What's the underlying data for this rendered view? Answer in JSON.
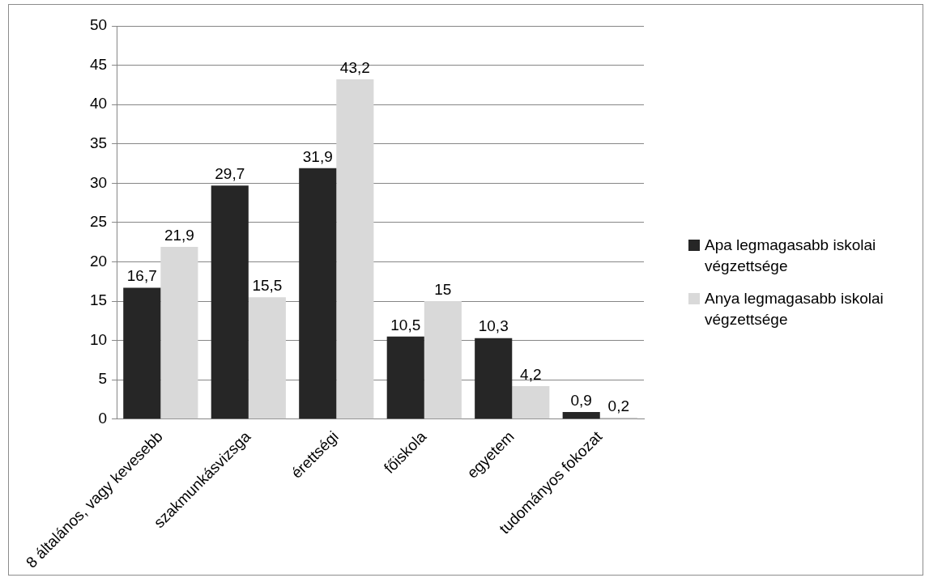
{
  "chart_data": {
    "type": "bar",
    "categories": [
      "8 általános, vagy kevesebb",
      "szakmunkásvizsga",
      "érettségi",
      "főiskola",
      "egyetem",
      "tudományos fokozat"
    ],
    "series": [
      {
        "name": "Apa legmagasabb iskolai végzettsége",
        "color": "#262626",
        "values": [
          16.7,
          29.7,
          31.9,
          10.5,
          10.3,
          0.9
        ],
        "value_labels": [
          "16,7",
          "29,7",
          "31,9",
          "10,5",
          "10,3",
          "0,9"
        ]
      },
      {
        "name": "Anya legmagasabb iskolai végzettsége",
        "color": "#d9d9d9",
        "values": [
          21.9,
          15.5,
          43.2,
          15,
          4.2,
          0.2
        ],
        "value_labels": [
          "21,9",
          "15,5",
          "43,2",
          "15",
          "4,2",
          "0,2"
        ]
      }
    ],
    "ylim": [
      0,
      50
    ],
    "yticks": [
      0,
      5,
      10,
      15,
      20,
      25,
      30,
      35,
      40,
      45,
      50
    ],
    "grid": "y",
    "legend": "right"
  }
}
